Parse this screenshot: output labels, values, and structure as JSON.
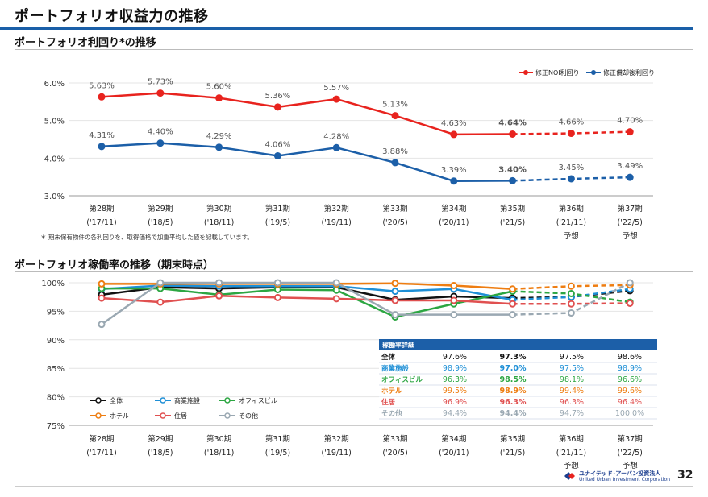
{
  "page": {
    "title": "ポートフォリオ収益力の推移",
    "page_number": "32",
    "logo_lines": [
      "ユナイテッド･アーバン投資法人",
      "United Urban Investment Corporation"
    ]
  },
  "periods": [
    {
      "label": "第28期",
      "sub": "('17/11)",
      "forecast": ""
    },
    {
      "label": "第29期",
      "sub": "('18/5)",
      "forecast": ""
    },
    {
      "label": "第30期",
      "sub": "('18/11)",
      "forecast": ""
    },
    {
      "label": "第31期",
      "sub": "('19/5)",
      "forecast": ""
    },
    {
      "label": "第32期",
      "sub": "('19/11)",
      "forecast": ""
    },
    {
      "label": "第33期",
      "sub": "('20/5)",
      "forecast": ""
    },
    {
      "label": "第34期",
      "sub": "('20/11)",
      "forecast": ""
    },
    {
      "label": "第35期",
      "sub": "('21/5)",
      "forecast": ""
    },
    {
      "label": "第36期",
      "sub": "('21/11)",
      "forecast": "予想"
    },
    {
      "label": "第37期",
      "sub": "('22/5)",
      "forecast": "予想"
    }
  ],
  "chart_data": [
    {
      "type": "line",
      "title": "ポートフォリオ利回り*の推移",
      "categories": [
        "第28期",
        "第29期",
        "第30期",
        "第31期",
        "第32期",
        "第33期",
        "第34期",
        "第35期",
        "第36期",
        "第37期"
      ],
      "ylim": [
        3.0,
        6.0
      ],
      "yticks": [
        "3.0%",
        "4.0%",
        "5.0%",
        "6.0%"
      ],
      "ytick_values": [
        3.0,
        4.0,
        5.0,
        6.0
      ],
      "forecast_from_index": 7,
      "legend_position": "top-right",
      "series": [
        {
          "name": "修正NOI利回り",
          "color": "#e8231e",
          "values": [
            5.63,
            5.73,
            5.6,
            5.36,
            5.57,
            5.13,
            4.63,
            4.64,
            4.66,
            4.7
          ],
          "labels": [
            "5.63%",
            "5.73%",
            "5.60%",
            "5.36%",
            "5.57%",
            "5.13%",
            "4.63%",
            "4.64%",
            "4.66%",
            "4.70%"
          ],
          "bold_index": 7
        },
        {
          "name": "修正償却後利回り",
          "color": "#1c5fa8",
          "values": [
            4.31,
            4.4,
            4.29,
            4.06,
            4.28,
            3.88,
            3.39,
            3.4,
            3.45,
            3.49
          ],
          "labels": [
            "4.31%",
            "4.40%",
            "4.29%",
            "4.06%",
            "4.28%",
            "3.88%",
            "3.39%",
            "3.40%",
            "3.45%",
            "3.49%"
          ],
          "bold_index": 7
        }
      ],
      "note": "＊ 期末保有物件の各利回りを、取得価格で加重平均した値を記載しています。"
    },
    {
      "type": "line",
      "title": "ポートフォリオ稼働率の推移（期末時点）",
      "categories": [
        "第28期",
        "第29期",
        "第30期",
        "第31期",
        "第32期",
        "第33期",
        "第34期",
        "第35期",
        "第36期",
        "第37期"
      ],
      "ylim": [
        75,
        100
      ],
      "yticks": [
        "75%",
        "80%",
        "85%",
        "90%",
        "95%",
        "100%"
      ],
      "ytick_values": [
        75,
        80,
        85,
        90,
        95,
        100
      ],
      "forecast_from_index": 7,
      "legend_position": "bottom-left",
      "series": [
        {
          "name": "全体",
          "color": "#111111",
          "values": [
            97.9,
            99.2,
            99.0,
            99.2,
            99.2,
            97.0,
            97.6,
            97.3,
            97.5,
            98.6
          ]
        },
        {
          "name": "商業施設",
          "color": "#1e8fd6",
          "values": [
            98.9,
            99.5,
            99.4,
            99.4,
            99.4,
            98.5,
            98.9,
            97.0,
            97.5,
            98.9
          ]
        },
        {
          "name": "オフィスビル",
          "color": "#2ca642",
          "values": [
            99.0,
            99.0,
            97.9,
            98.8,
            98.7,
            94.0,
            96.3,
            98.5,
            98.1,
            96.6
          ]
        },
        {
          "name": "ホテル",
          "color": "#ee7d11",
          "values": [
            99.8,
            99.8,
            99.8,
            99.8,
            99.8,
            99.9,
            99.5,
            98.9,
            99.4,
            99.6
          ]
        },
        {
          "name": "住居",
          "color": "#e05050",
          "values": [
            97.3,
            96.6,
            97.7,
            97.4,
            97.2,
            96.9,
            96.9,
            96.3,
            96.3,
            96.4
          ]
        },
        {
          "name": "その他",
          "color": "#9aa8b2",
          "values": [
            92.7,
            100.0,
            100.0,
            100.0,
            100.0,
            94.4,
            94.4,
            94.4,
            94.7,
            100.0
          ]
        }
      ],
      "table": {
        "header": "稼働率詳細",
        "rows": [
          {
            "name": "全体",
            "color": "#111111",
            "values": [
              "97.6%",
              "97.3%",
              "97.5%",
              "98.6%"
            ]
          },
          {
            "name": "商業施設",
            "color": "#1e8fd6",
            "values": [
              "98.9%",
              "97.0%",
              "97.5%",
              "98.9%"
            ]
          },
          {
            "name": "オフィスビル",
            "color": "#2ca642",
            "values": [
              "96.3%",
              "98.5%",
              "98.1%",
              "96.6%"
            ]
          },
          {
            "name": "ホテル",
            "color": "#ee7d11",
            "values": [
              "99.5%",
              "98.9%",
              "99.4%",
              "99.6%"
            ]
          },
          {
            "name": "住居",
            "color": "#e05050",
            "values": [
              "96.9%",
              "96.3%",
              "96.3%",
              "96.4%"
            ]
          },
          {
            "name": "その他",
            "color": "#9aa8b2",
            "values": [
              "94.4%",
              "94.4%",
              "94.7%",
              "100.0%"
            ]
          }
        ]
      }
    }
  ]
}
